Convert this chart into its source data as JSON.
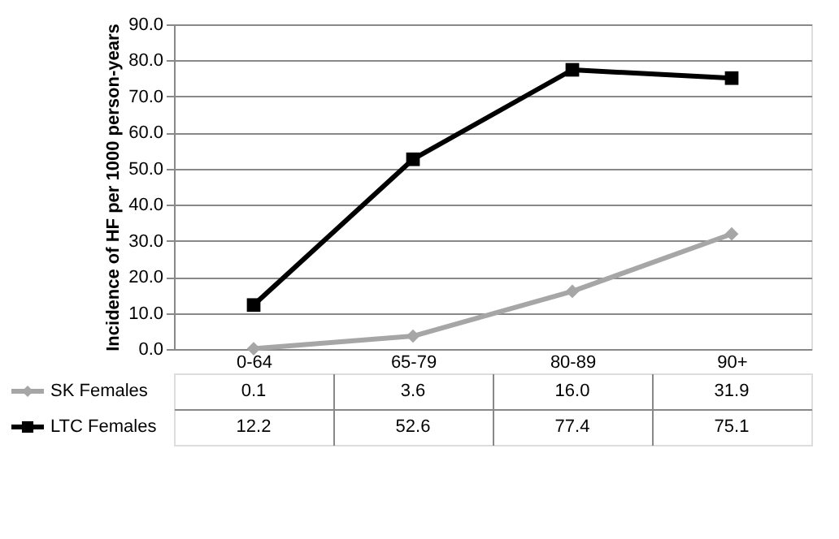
{
  "chart_data": {
    "type": "line",
    "ylabel": "Incidence of HF per 1000 person-years",
    "categories": [
      "0-64",
      "65-79",
      "80-89",
      "90+"
    ],
    "series": [
      {
        "name": "SK Females",
        "color": "#a6a6a6",
        "marker": "diamond",
        "values": [
          0.1,
          3.6,
          16.0,
          31.9
        ],
        "value_labels": [
          "0.1",
          "3.6",
          "16.0",
          "31.9"
        ]
      },
      {
        "name": "LTC Females",
        "color": "#000000",
        "marker": "square",
        "values": [
          12.2,
          52.6,
          77.4,
          75.1
        ],
        "value_labels": [
          "12.2",
          "52.6",
          "77.4",
          "75.1"
        ]
      }
    ],
    "ylim": [
      0,
      90
    ],
    "yticks": [
      {
        "value": 0,
        "label": "0.0"
      },
      {
        "value": 10,
        "label": "10.0"
      },
      {
        "value": 20,
        "label": "20.0"
      },
      {
        "value": 30,
        "label": "30.0"
      },
      {
        "value": 40,
        "label": "40.0"
      },
      {
        "value": 50,
        "label": "50.0"
      },
      {
        "value": 60,
        "label": "60.0"
      },
      {
        "value": 70,
        "label": "70.0"
      },
      {
        "value": 80,
        "label": "80.0"
      },
      {
        "value": 90,
        "label": "90.0"
      }
    ],
    "grid": "y",
    "legend": "bottom left",
    "line_style": "solid"
  }
}
